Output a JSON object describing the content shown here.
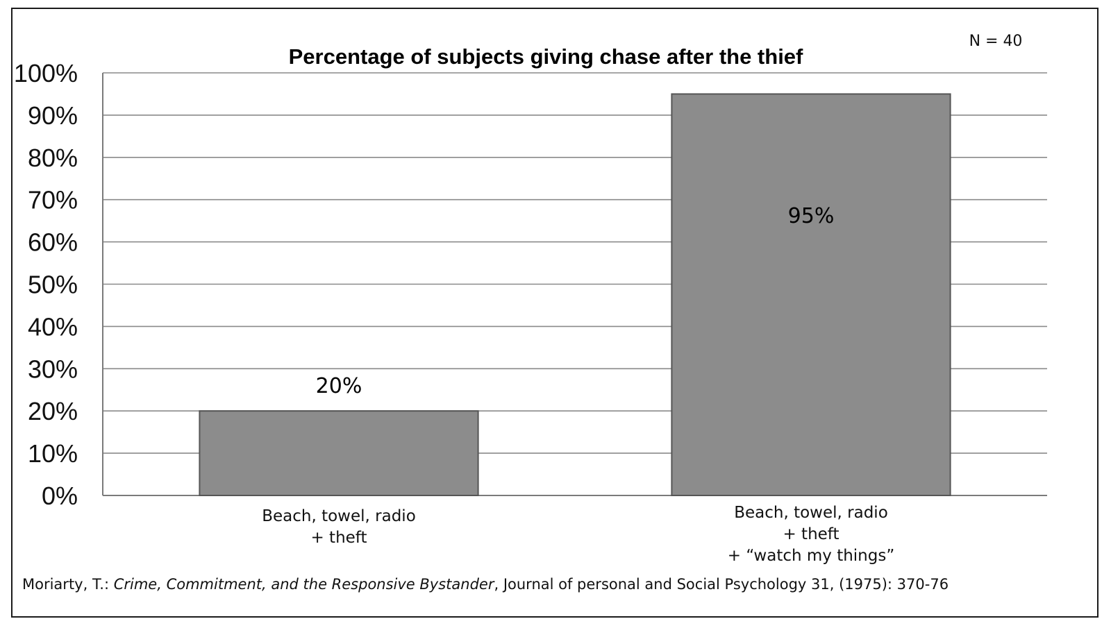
{
  "chart_data": {
    "type": "bar",
    "title": "Percentage of subjects giving chase after the thief",
    "annotation": "N = 40",
    "categories": [
      [
        "Beach, towel, radio",
        "+ theft"
      ],
      [
        "Beach, towel, radio",
        "+ theft",
        "+ “watch my things”"
      ]
    ],
    "values": [
      20,
      95
    ],
    "data_labels": [
      "20%",
      "95%"
    ],
    "y_ticks": [
      "0%",
      "10%",
      "20%",
      "30%",
      "40%",
      "50%",
      "60%",
      "70%",
      "80%",
      "90%",
      "100%"
    ],
    "ylim": [
      0,
      100
    ],
    "grid": true,
    "bar_color": "#8c8c8c",
    "bar_edge_color": "#555555",
    "grid_color": "#8a8a8a"
  },
  "source": {
    "author": "Moriarty, T.: ",
    "work": "Crime, Commitment, and the Responsive Bystander",
    "rest": ", Journal of personal and Social Psychology 31, (1975): 370-76"
  }
}
